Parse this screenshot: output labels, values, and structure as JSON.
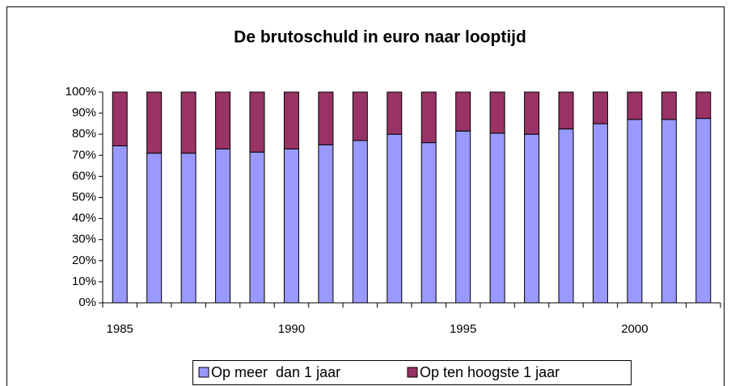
{
  "chart_data": {
    "type": "stacked_bar",
    "title": "De brutoschuld in euro naar looptijd",
    "categories": [
      "1985",
      null,
      null,
      null,
      null,
      "1990",
      null,
      null,
      null,
      null,
      "1995",
      null,
      null,
      null,
      null,
      "2000",
      null,
      null
    ],
    "series": [
      {
        "name": "Op meer  dan 1 jaar",
        "color": "#9999ff",
        "values": [
          74.5,
          71,
          71,
          73,
          71.5,
          73,
          75,
          77,
          80,
          76,
          81.5,
          80.5,
          80,
          82.5,
          85,
          87,
          87,
          87.5
        ]
      },
      {
        "name": "Op ten hoogste 1 jaar",
        "color": "#993366",
        "values": [
          25.5,
          29,
          29,
          27,
          28.5,
          27,
          25,
          23,
          20,
          24,
          18.5,
          19.5,
          20,
          17.5,
          15,
          13,
          13,
          12.5
        ]
      }
    ],
    "ylim": [
      0,
      100
    ],
    "yticks": [
      {
        "value": 0,
        "label": "0%"
      },
      {
        "value": 10,
        "label": "10%"
      },
      {
        "value": 20,
        "label": "20%"
      },
      {
        "value": 30,
        "label": "30%"
      },
      {
        "value": 40,
        "label": "40%"
      },
      {
        "value": 50,
        "label": "50%"
      },
      {
        "value": 60,
        "label": "60%"
      },
      {
        "value": 70,
        "label": "70%"
      },
      {
        "value": 80,
        "label": "80%"
      },
      {
        "value": 90,
        "label": "90%"
      },
      {
        "value": 100,
        "label": "100%"
      }
    ],
    "legend": "bottom"
  }
}
